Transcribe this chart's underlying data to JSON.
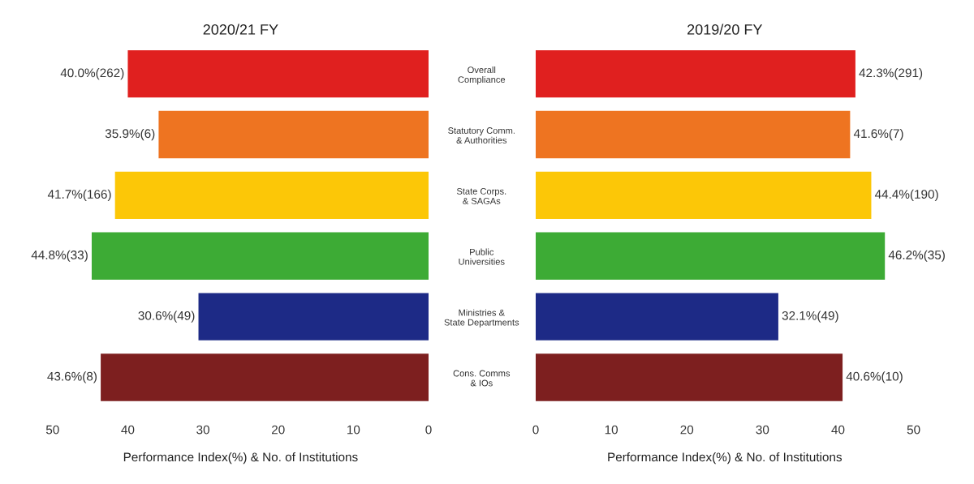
{
  "chart_data": [
    {
      "type": "bar",
      "orientation": "horizontal",
      "title": "2020/21 FY",
      "xlabel": "Performance Index(%) & No. of Institutions",
      "categories": [
        "Overall Compliance",
        "Statutory Comm. & Authorities",
        "State Corps. & SAGAs",
        "Public Universities",
        "Ministries & State Departments",
        "Cons. Comms & IOs"
      ],
      "values": [
        40.0,
        35.9,
        41.7,
        44.8,
        30.6,
        43.6
      ],
      "value_labels": [
        "40.0%(262)",
        "35.9%(6)",
        "41.7%(166)",
        "44.8%(33)",
        "30.6%(49)",
        "43.6%(8)"
      ],
      "colors": [
        "#e0201f",
        "#ee7421",
        "#fcc707",
        "#3dab35",
        "#1d2a86",
        "#7d1f1f"
      ],
      "xlim": [
        50,
        0
      ],
      "xticks": [
        50,
        40,
        30,
        20,
        10,
        0
      ],
      "grid": false,
      "legend": false
    },
    {
      "type": "bar",
      "orientation": "horizontal",
      "title": "2019/20 FY",
      "xlabel": "Performance Index(%) & No. of Institutions",
      "values": [
        42.3,
        41.6,
        44.4,
        46.2,
        32.1,
        40.6
      ],
      "value_labels": [
        "42.3%(291)",
        "41.6%(7)",
        "44.4%(190)",
        "46.2%(35)",
        "32.1%(49)",
        "40.6%(10)"
      ],
      "colors": [
        "#e0201f",
        "#ee7421",
        "#fcc707",
        "#3dab35",
        "#1d2a86",
        "#7d1f1f"
      ],
      "xlim": [
        0,
        50
      ],
      "xticks": [
        0,
        10,
        20,
        30,
        40,
        50
      ],
      "tick_labels": "x",
      "grid": false,
      "legend": false
    }
  ]
}
